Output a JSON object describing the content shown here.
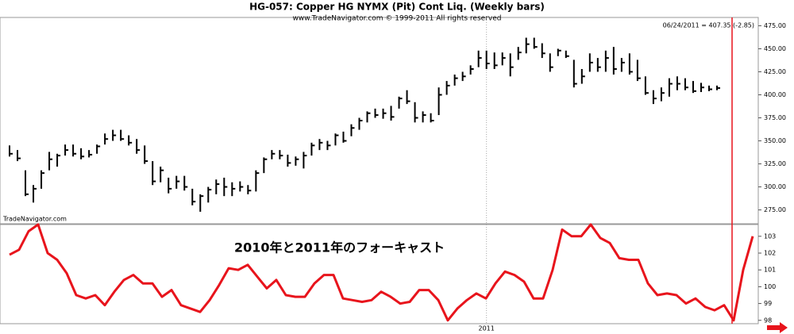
{
  "chart_data": [
    {
      "type": "hlc",
      "title": "HG-057:  Copper HG NYMX (Pit) Cont Liq.  (Weekly bars)",
      "subtitle": "www.TradeNavigator.com © 1999-2011 All rights reserved",
      "annotation": "06/24/2011 = 407.35 (-2.85)",
      "watermark": "TradeNavigator.com",
      "color": "#000000",
      "categories": [
        null,
        null,
        null,
        null,
        null,
        null,
        null,
        null,
        null,
        null,
        null,
        null,
        null,
        null,
        null,
        null,
        null,
        null,
        null,
        null,
        null,
        null,
        null,
        null,
        null,
        null,
        null,
        null,
        null,
        null,
        null,
        null,
        null,
        null,
        null,
        null,
        null,
        null,
        null,
        null,
        null,
        null,
        null,
        null,
        null,
        null,
        null,
        null,
        null,
        null,
        null,
        null,
        null,
        null,
        null,
        null,
        null,
        null,
        null,
        null,
        "2011",
        null,
        null,
        null,
        null,
        null,
        null,
        null,
        null,
        null,
        null,
        null,
        null,
        null,
        null,
        null,
        null,
        null,
        null,
        null,
        null,
        null,
        null,
        null,
        null,
        null,
        null,
        null,
        null,
        null
      ],
      "high": [
        345,
        340,
        318,
        302,
        318,
        338,
        336,
        346,
        346,
        342,
        340,
        346,
        358,
        362,
        362,
        356,
        352,
        345,
        328,
        322,
        310,
        312,
        312,
        298,
        292,
        300,
        308,
        310,
        305,
        306,
        302,
        318,
        332,
        340,
        340,
        335,
        333,
        338,
        348,
        352,
        350,
        358,
        360,
        368,
        375,
        382,
        385,
        385,
        388,
        398,
        405,
        392,
        382,
        380,
        408,
        415,
        422,
        425,
        432,
        448,
        448,
        446,
        446,
        445,
        452,
        462,
        462,
        456,
        445,
        450,
        448,
        438,
        428,
        445,
        440,
        448,
        452,
        440,
        445,
        438,
        420,
        405,
        408,
        418,
        420,
        418,
        415,
        413,
        410,
        410
      ],
      "low": [
        333,
        328,
        290,
        283,
        298,
        318,
        322,
        334,
        333,
        330,
        332,
        336,
        346,
        350,
        350,
        345,
        336,
        325,
        302,
        305,
        293,
        298,
        296,
        280,
        273,
        283,
        292,
        290,
        290,
        295,
        292,
        295,
        315,
        330,
        330,
        322,
        323,
        320,
        334,
        340,
        340,
        345,
        348,
        355,
        362,
        370,
        375,
        374,
        372,
        385,
        390,
        370,
        370,
        370,
        378,
        400,
        410,
        415,
        422,
        430,
        428,
        428,
        432,
        420,
        438,
        445,
        450,
        440,
        425,
        442,
        440,
        408,
        412,
        425,
        425,
        425,
        422,
        425,
        422,
        415,
        400,
        390,
        393,
        398,
        405,
        405,
        402,
        403,
        404,
        405
      ],
      "close": [
        336,
        331,
        292,
        298,
        315,
        330,
        334,
        340,
        336,
        333,
        335,
        344,
        352,
        356,
        352,
        348,
        340,
        328,
        306,
        318,
        298,
        306,
        300,
        284,
        290,
        297,
        303,
        300,
        298,
        300,
        296,
        315,
        330,
        336,
        334,
        326,
        330,
        334,
        345,
        348,
        345,
        356,
        350,
        364,
        372,
        380,
        378,
        380,
        376,
        396,
        393,
        375,
        378,
        372,
        400,
        410,
        418,
        420,
        428,
        440,
        434,
        432,
        440,
        430,
        446,
        455,
        452,
        445,
        430,
        448,
        442,
        412,
        420,
        435,
        430,
        440,
        428,
        435,
        425,
        418,
        402,
        396,
        402,
        412,
        412,
        408,
        404,
        408,
        406,
        407.35
      ],
      "ylim": [
        260,
        484
      ],
      "yticks": [
        {
          "value": 275,
          "label": "275.00"
        },
        {
          "value": 300,
          "label": "300.00"
        },
        {
          "value": 325,
          "label": "325.00"
        },
        {
          "value": 350,
          "label": "350.00"
        },
        {
          "value": 375,
          "label": "375.00"
        },
        {
          "value": 400,
          "label": "400.00"
        },
        {
          "value": 425,
          "label": "425.00"
        },
        {
          "value": 450,
          "label": "450.00"
        },
        {
          "value": 475,
          "label": "475.00"
        }
      ]
    },
    {
      "type": "line",
      "annotation": "2010年と2011年のフォーキャスト",
      "annotation_color": "#1e1ef0",
      "color": "#e8141c",
      "values": [
        101.9,
        102.2,
        103.3,
        103.7,
        102.0,
        101.6,
        100.8,
        99.5,
        99.3,
        99.5,
        98.9,
        99.7,
        100.4,
        100.7,
        100.2,
        100.2,
        99.4,
        99.8,
        98.9,
        98.7,
        98.5,
        99.2,
        100.1,
        101.1,
        101.0,
        101.3,
        100.6,
        99.9,
        100.4,
        99.5,
        99.4,
        99.4,
        100.2,
        100.7,
        100.7,
        99.3,
        99.2,
        99.1,
        99.2,
        99.7,
        99.4,
        99.0,
        99.1,
        99.8,
        99.8,
        99.2,
        98.0,
        98.7,
        99.2,
        99.6,
        99.3,
        100.2,
        100.9,
        100.7,
        100.3,
        99.3,
        99.3,
        101.0,
        103.4,
        103.0,
        103.0,
        103.7,
        102.9,
        102.6,
        101.7,
        101.6,
        101.6,
        100.2,
        99.5,
        99.6,
        99.5,
        99.0,
        99.3,
        98.8,
        98.6,
        98.9,
        98.0,
        101.0,
        103.0
      ],
      "ylim": [
        97.8,
        103.7
      ],
      "yticks": [
        98,
        99,
        100,
        101,
        102,
        103
      ]
    }
  ]
}
